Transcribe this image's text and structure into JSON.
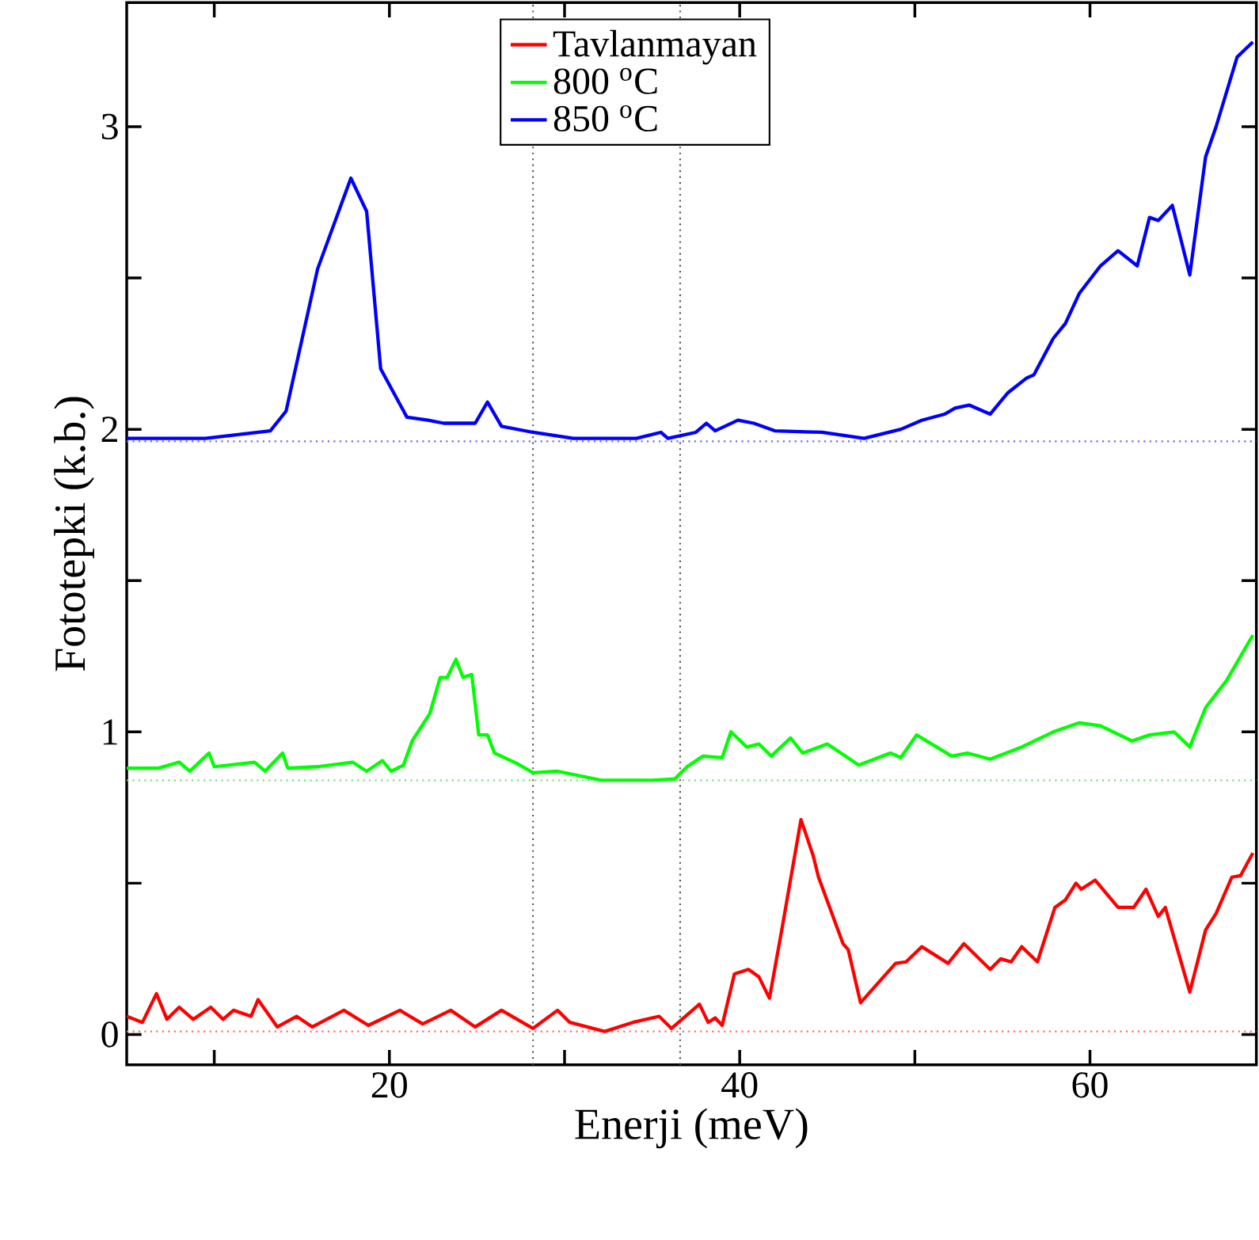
{
  "chart_data": {
    "type": "line",
    "xlabel": "Enerji (meV)",
    "ylabel": "Fototepki (k.b.)",
    "xlim": [
      5,
      69.5
    ],
    "ylim": [
      -0.1,
      3.41
    ],
    "xticks": [
      {
        "value": 10,
        "label": null
      },
      20,
      {
        "value": 30,
        "label": null
      },
      40,
      {
        "value": 50,
        "label": null
      },
      60
    ],
    "yticks": [
      0,
      {
        "value": 0.5,
        "label": null
      },
      1,
      {
        "value": 1.5,
        "label": null
      },
      2,
      {
        "value": 2.5,
        "label": null
      },
      3
    ],
    "legend": "top",
    "line_style": "solid",
    "marker": "none",
    "grid": false,
    "series": [
      {
        "name": "Tavlanmayan",
        "color": "#ff0000",
        "x": [
          5.0,
          5.9,
          6.7,
          7.3,
          8.0,
          8.8,
          9.8,
          10.5,
          11.1,
          12.1,
          12.5,
          13.6,
          14.7,
          15.6,
          17.4,
          18.8,
          20.6,
          21.9,
          23.5,
          24.9,
          26.4,
          28.2,
          29.6,
          30.3,
          32.3,
          33.9,
          35.4,
          36.1,
          37.5,
          37.7,
          38.2,
          38.6,
          39.0,
          39.7,
          40.5,
          41.1,
          41.7,
          42.4,
          43.5,
          44.2,
          44.5,
          45.9,
          46.2,
          46.9,
          48.9,
          49.5,
          50.4,
          51.9,
          52.8,
          54.3,
          54.9,
          55.5,
          56.1,
          57.0,
          58.0,
          58.6,
          59.2,
          59.5,
          60.3,
          61.6,
          62.5,
          63.2,
          63.9,
          64.3,
          65.7,
          66.6,
          67.2,
          68.1,
          68.6,
          69.3
        ],
        "values": [
          0.06,
          0.04,
          0.135,
          0.05,
          0.09,
          0.05,
          0.09,
          0.05,
          0.08,
          0.06,
          0.115,
          0.025,
          0.06,
          0.025,
          0.08,
          0.03,
          0.08,
          0.035,
          0.08,
          0.025,
          0.08,
          0.02,
          0.08,
          0.04,
          0.01,
          0.04,
          0.06,
          0.02,
          0.09,
          0.1,
          0.04,
          0.055,
          0.03,
          0.2,
          0.215,
          0.19,
          0.12,
          0.345,
          0.71,
          0.59,
          0.52,
          0.3,
          0.28,
          0.105,
          0.235,
          0.24,
          0.29,
          0.235,
          0.3,
          0.215,
          0.25,
          0.24,
          0.29,
          0.24,
          0.42,
          0.445,
          0.5,
          0.48,
          0.51,
          0.42,
          0.42,
          0.48,
          0.39,
          0.42,
          0.14,
          0.345,
          0.4,
          0.52,
          0.525,
          0.6
        ]
      },
      {
        "name": "800 $^{o}$C",
        "color": "#00ff00",
        "x": [
          5.0,
          6.8,
          8.0,
          8.6,
          9.7,
          10.0,
          12.3,
          12.9,
          13.9,
          14.2,
          15.9,
          17.9,
          18.7,
          19.6,
          20.1,
          20.8,
          21.3,
          22.3,
          22.9,
          23.3,
          23.8,
          24.2,
          24.7,
          25.1,
          25.6,
          26.0,
          27.3,
          28.2,
          29.6,
          32.1,
          35.0,
          36.3,
          37.0,
          37.9,
          39.0,
          39.5,
          40.4,
          41.1,
          41.8,
          42.9,
          43.6,
          45.0,
          46.8,
          48.6,
          49.2,
          50.1,
          52.1,
          53.0,
          54.3,
          56.1,
          57.9,
          59.4,
          60.6,
          62.4,
          63.4,
          64.8,
          65.7,
          66.6,
          67.8,
          69.3
        ],
        "values": [
          0.88,
          0.88,
          0.9,
          0.87,
          0.93,
          0.885,
          0.9,
          0.87,
          0.93,
          0.88,
          0.885,
          0.9,
          0.87,
          0.905,
          0.87,
          0.89,
          0.97,
          1.06,
          1.18,
          1.18,
          1.24,
          1.18,
          1.19,
          0.99,
          0.99,
          0.93,
          0.895,
          0.865,
          0.87,
          0.84,
          0.84,
          0.845,
          0.885,
          0.92,
          0.915,
          1.0,
          0.95,
          0.96,
          0.92,
          0.98,
          0.93,
          0.96,
          0.89,
          0.93,
          0.915,
          0.99,
          0.92,
          0.93,
          0.91,
          0.95,
          1.0,
          1.03,
          1.02,
          0.97,
          0.99,
          1.0,
          0.95,
          1.08,
          1.17,
          1.32
        ]
      },
      {
        "name": "850 $^{o}$C",
        "color": "#0000ff",
        "x": [
          5.0,
          9.5,
          13.2,
          14.1,
          15.9,
          17.8,
          18.7,
          19.5,
          21.0,
          22.2,
          23.1,
          24.9,
          25.6,
          26.4,
          28.2,
          30.5,
          34.1,
          35.5,
          35.9,
          37.5,
          38.1,
          38.6,
          39.9,
          40.8,
          42.0,
          44.7,
          47.1,
          49.2,
          50.4,
          51.7,
          52.3,
          53.1,
          54.3,
          55.3,
          56.4,
          56.8,
          57.9,
          58.6,
          59.4,
          60.6,
          61.6,
          62.7,
          63.4,
          63.9,
          64.7,
          65.7,
          66.6,
          67.2,
          68.4,
          69.3
        ],
        "values": [
          1.97,
          1.97,
          1.995,
          2.06,
          2.53,
          2.83,
          2.72,
          2.2,
          2.04,
          2.03,
          2.02,
          2.02,
          2.09,
          2.01,
          1.99,
          1.97,
          1.97,
          1.99,
          1.97,
          1.99,
          2.02,
          1.995,
          2.03,
          2.02,
          1.995,
          1.99,
          1.97,
          2.0,
          2.03,
          2.05,
          2.07,
          2.08,
          2.05,
          2.12,
          2.17,
          2.18,
          2.3,
          2.35,
          2.45,
          2.54,
          2.59,
          2.54,
          2.7,
          2.69,
          2.74,
          2.51,
          2.9,
          3.0,
          3.23,
          3.28
        ]
      }
    ],
    "ref_lines": [
      {
        "axis": "y",
        "value": 1.96,
        "color": "#6666ff",
        "line_style": "dotted"
      },
      {
        "axis": "y",
        "value": 0.84,
        "color": "#66dd66",
        "line_style": "dotted"
      },
      {
        "axis": "y",
        "value": 0.01,
        "color": "#ff6666",
        "line_style": "dotted"
      },
      {
        "axis": "x",
        "value": 28.2,
        "color": "#555555",
        "line_style": "dotted"
      },
      {
        "axis": "x",
        "value": 36.6,
        "color": "#555555",
        "line_style": "dotted"
      }
    ]
  }
}
